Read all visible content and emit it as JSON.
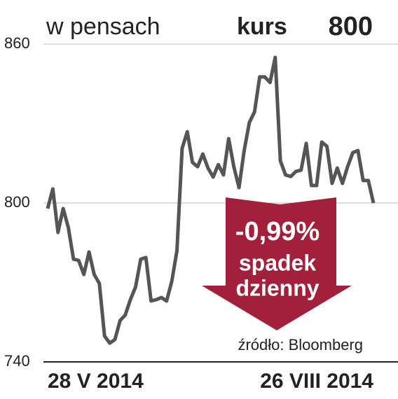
{
  "chart_data": {
    "type": "line",
    "y_label": "w pensach",
    "current_label": "kurs",
    "current_value": 800,
    "annotation": [
      "-0,99%",
      "spadek",
      "dzienny"
    ],
    "annotation_color": "#a3203c",
    "source": "źródło: Bloomberg",
    "categories": [
      "28 V 2014",
      null,
      null,
      null,
      null,
      null,
      null,
      null,
      null,
      null,
      null,
      null,
      null,
      null,
      null,
      null,
      null,
      null,
      null,
      null,
      null,
      null,
      null,
      null,
      null,
      null,
      null,
      null,
      null,
      null,
      null,
      null,
      null,
      null,
      null,
      null,
      null,
      null,
      null,
      null,
      null,
      null,
      null,
      null,
      null,
      null,
      null,
      null,
      null,
      null,
      null,
      null,
      null,
      null,
      null,
      null,
      null,
      null,
      null,
      null,
      null,
      null,
      null,
      "26 VIII 2014"
    ],
    "series": [
      {
        "color": "#555555",
        "values": [
          797.9,
          805.3,
          788.9,
          797.9,
          790.7,
          778.8,
          778.3,
          773.0,
          781.5,
          773.0,
          769.6,
          749.8,
          747.1,
          748.4,
          755.6,
          757.7,
          763.5,
          768.3,
          778.8,
          779.4,
          763.0,
          763.5,
          764.3,
          763.0,
          770.4,
          782.0,
          820.6,
          826.9,
          815.3,
          813.7,
          818.5,
          813.2,
          809.8,
          814.5,
          810.6,
          824.3,
          813.7,
          805.8,
          819.8,
          830.4,
          834.4,
          847.6,
          847.6,
          845.5,
          855.0,
          815.9,
          810.6,
          810.0,
          811.9,
          812.4,
          822.5,
          806.6,
          806.6,
          823.0,
          821.4,
          807.4,
          813.2,
          807.4,
          813.7,
          819.0,
          819.8,
          808.5,
          808.5,
          800.0
        ]
      }
    ],
    "ylim": [
      740,
      860
    ],
    "yticks": [
      740,
      800,
      860
    ],
    "grid": true
  }
}
